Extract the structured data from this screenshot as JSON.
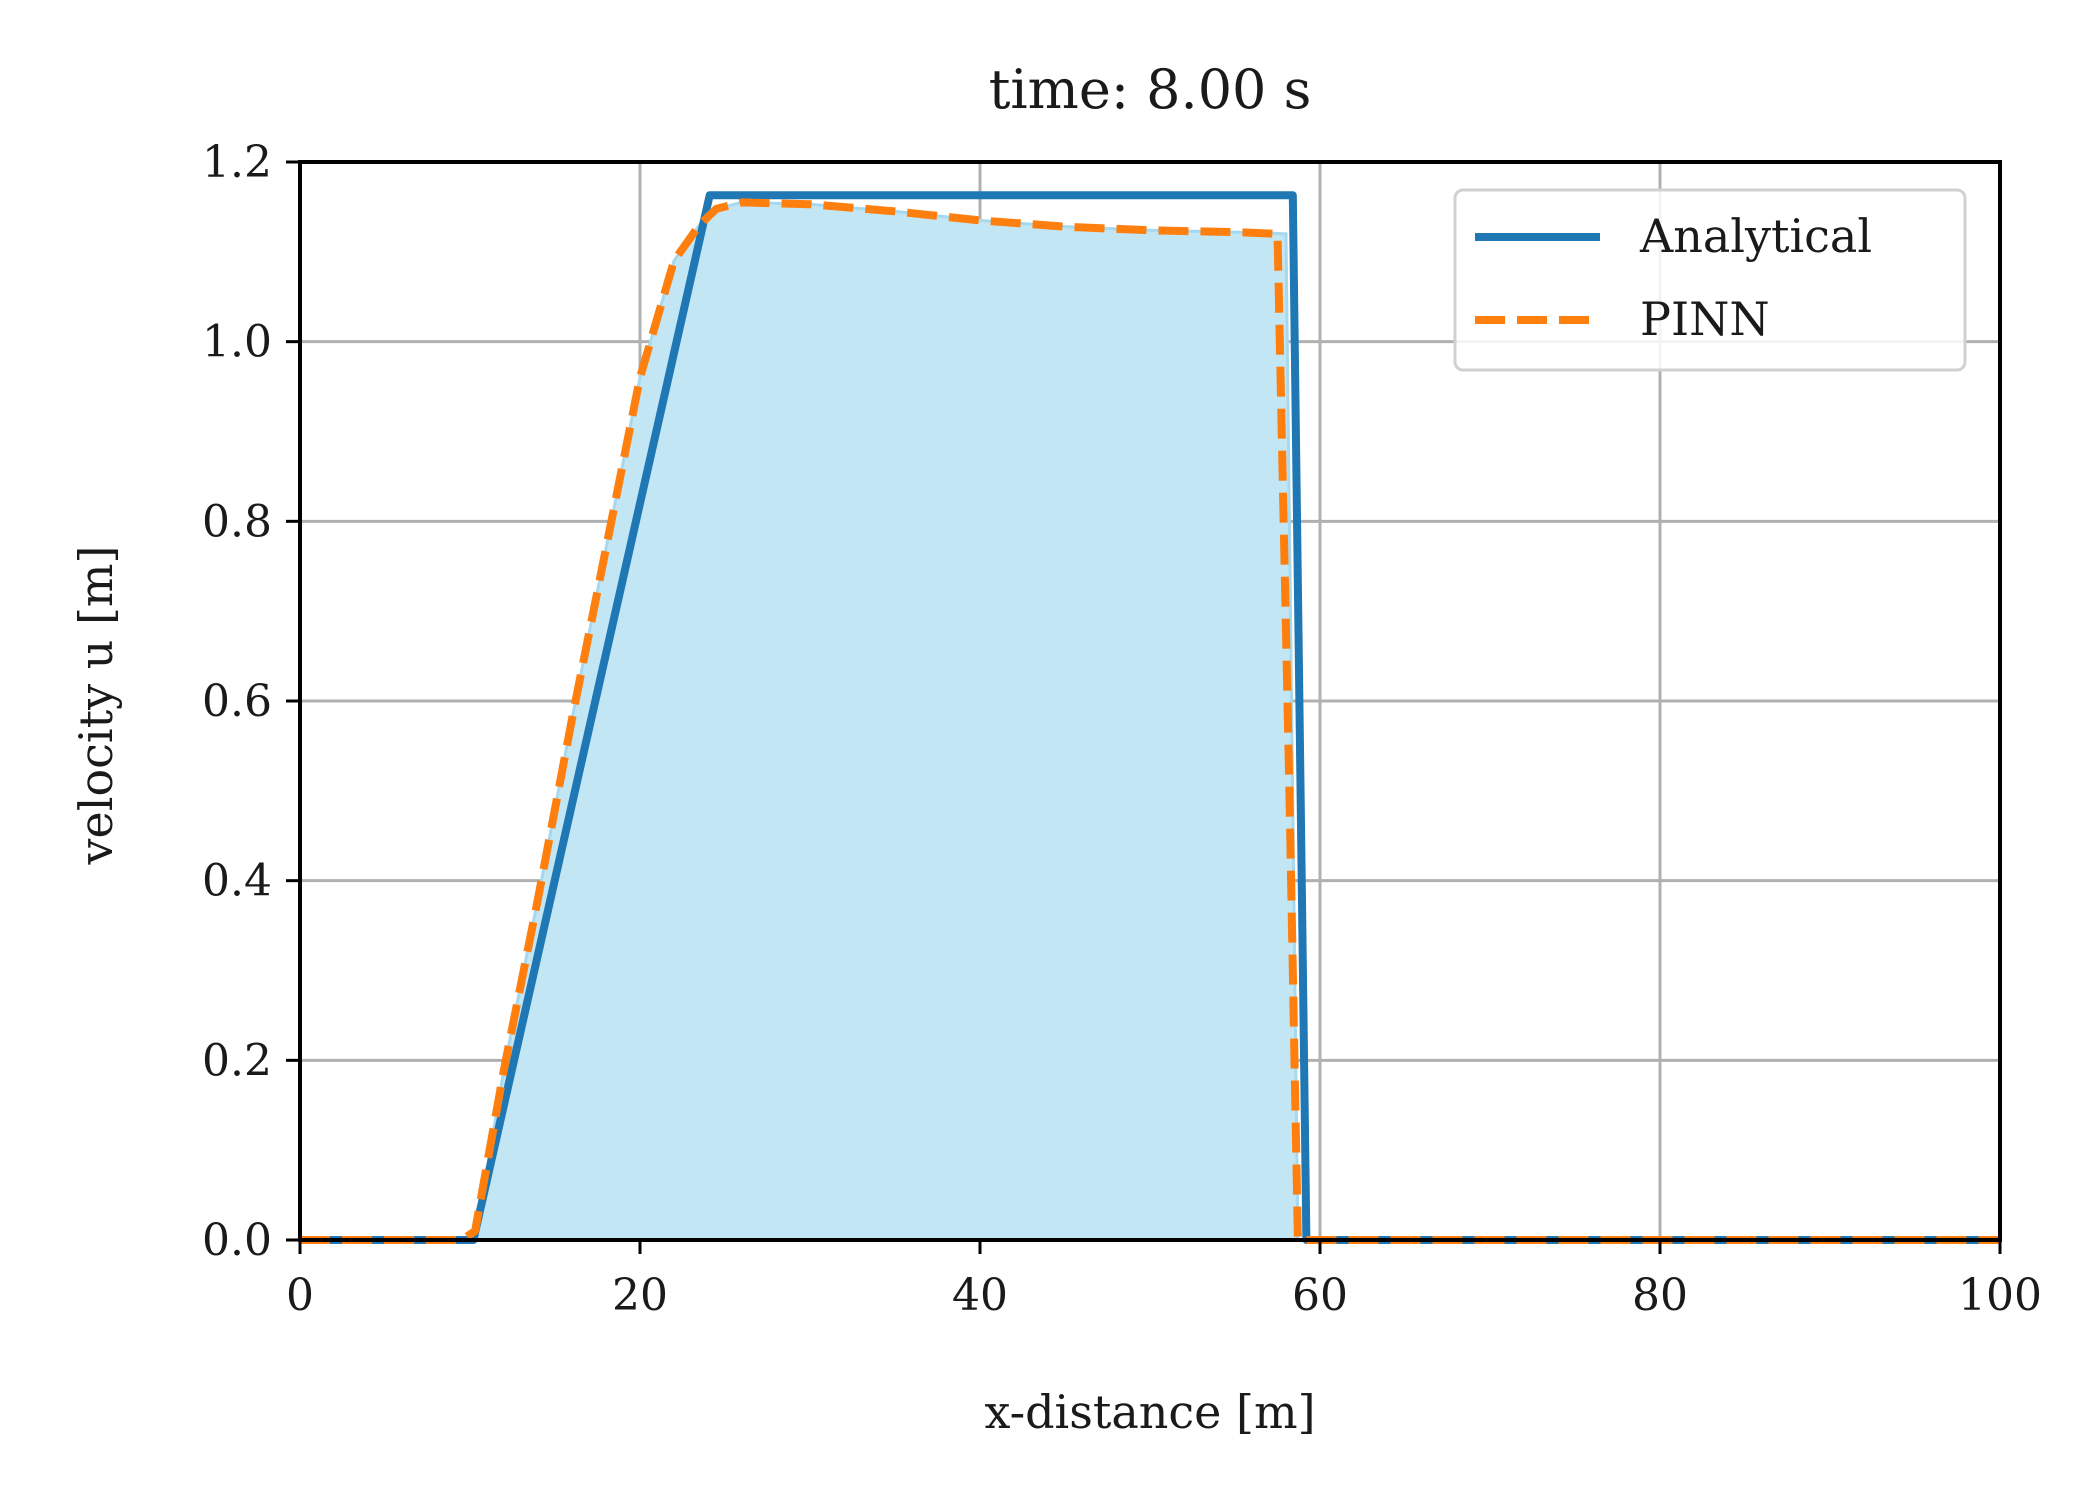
{
  "chart_data": {
    "type": "line",
    "title": "time: 8.00 s",
    "xlabel": "x-distance [m]",
    "ylabel": "velocity u [m]",
    "xlim": [
      0,
      100
    ],
    "ylim": [
      0,
      1.2
    ],
    "xticks": [
      "0",
      "20",
      "40",
      "60",
      "80",
      "100"
    ],
    "yticks": [
      "0.0",
      "0.2",
      "0.4",
      "0.6",
      "0.8",
      "1.0",
      "1.2"
    ],
    "grid": true,
    "legend_position": "top-right",
    "series": [
      {
        "name": "Analytical",
        "style": "solid",
        "color": "#1f77b4",
        "x": [
          0,
          10.2,
          24.1,
          58.4,
          59.2,
          100
        ],
        "y": [
          0,
          0,
          1.163,
          1.163,
          0,
          0
        ]
      },
      {
        "name": "PINN",
        "style": "dashed",
        "color": "#ff7f0e",
        "x": [
          0,
          9.5,
          10.3,
          12,
          14,
          16,
          18,
          20,
          22,
          23.5,
          24.5,
          26,
          30,
          35,
          40,
          45,
          50,
          55,
          57.5,
          58.2,
          58.7,
          100
        ],
        "y": [
          0,
          0,
          0.01,
          0.19,
          0.38,
          0.58,
          0.77,
          0.96,
          1.09,
          1.13,
          1.148,
          1.155,
          1.153,
          1.145,
          1.135,
          1.128,
          1.124,
          1.122,
          1.12,
          0.5,
          0,
          0
        ]
      }
    ],
    "fill": {
      "color": "#c3e6f4",
      "x": [
        10.3,
        12,
        14,
        16,
        18,
        20,
        22,
        23.5,
        24.5,
        26,
        30,
        35,
        40,
        45,
        50,
        55,
        58,
        58.7
      ],
      "y": [
        0,
        0.19,
        0.38,
        0.58,
        0.77,
        0.96,
        1.09,
        1.13,
        1.148,
        1.155,
        1.153,
        1.145,
        1.135,
        1.128,
        1.124,
        1.122,
        1.12,
        0
      ]
    }
  }
}
